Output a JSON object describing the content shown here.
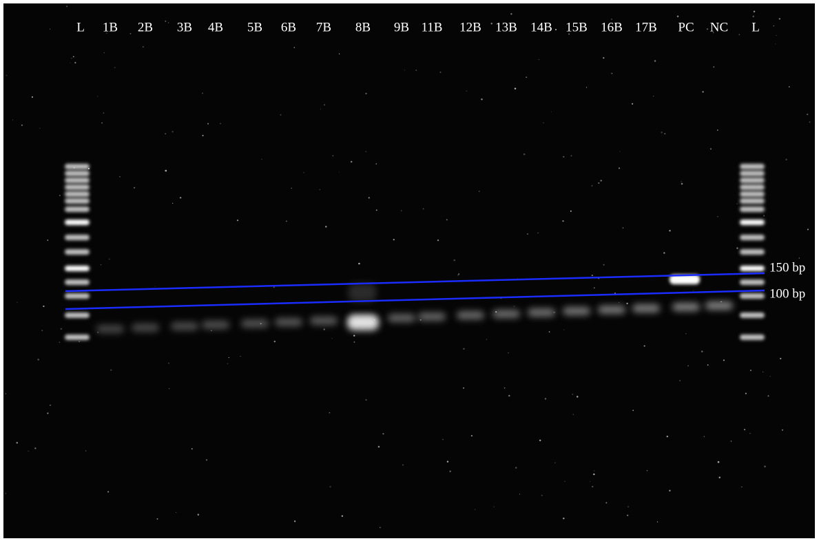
{
  "lanes": [
    "L",
    "1B",
    "2B",
    "3B",
    "4B",
    "5B",
    "6B",
    "7B",
    "8B",
    "9B",
    "11B",
    "12B",
    "13B",
    "14B",
    "15B",
    "16B",
    "17B",
    "PC",
    "NC",
    "L"
  ],
  "markers": [
    "150 bp",
    "100 bp"
  ]
}
